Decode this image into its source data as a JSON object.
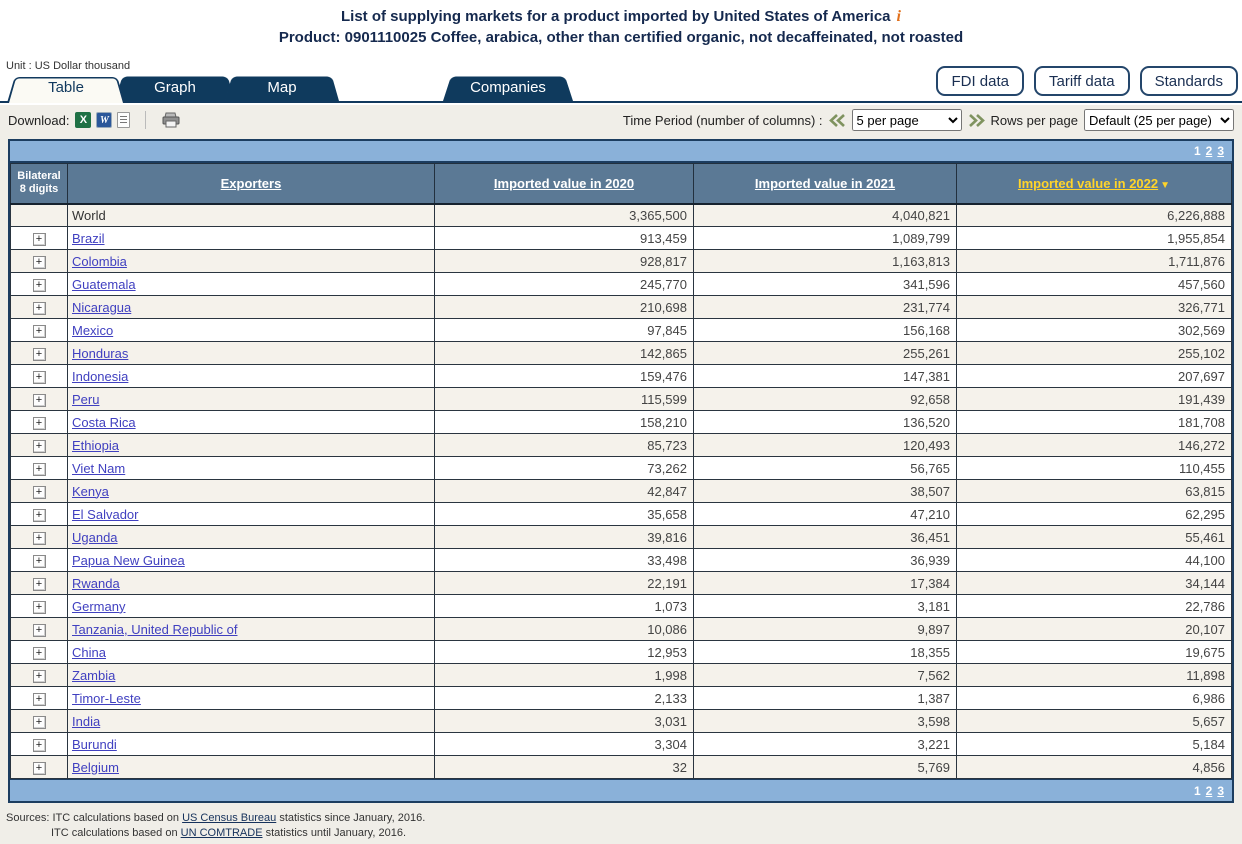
{
  "page": {
    "title_line1": "List of supplying markets for a product imported by United States of America",
    "info_icon": "i",
    "title_line2": "Product: 0901110025 Coffee, arabica, other than certified organic, not decaffeinated, not roasted",
    "unit_label": "Unit : US Dollar thousand"
  },
  "tabs": [
    {
      "label": "Table",
      "active": true
    },
    {
      "label": "Graph",
      "active": false
    },
    {
      "label": "Map",
      "active": false
    },
    {
      "label": "Companies",
      "active": false
    }
  ],
  "top_buttons": [
    {
      "label": "FDI data"
    },
    {
      "label": "Tariff data"
    },
    {
      "label": "Standards"
    }
  ],
  "toolbar": {
    "download_label": "Download:",
    "download_icons": [
      "excel-icon",
      "word-icon",
      "text-file-icon",
      "printer-icon"
    ],
    "time_period_label": "Time Period (number of columns) :",
    "time_period_value": "5 per page",
    "rows_per_page_label": "Rows per page",
    "rows_per_page_value": "Default (25 per page)"
  },
  "pagination": {
    "pages": [
      "1",
      "2",
      "3"
    ],
    "current": "1"
  },
  "table": {
    "col1_header_line1": "Bilateral",
    "col1_header_line2": "8 digits",
    "exporters_header": "Exporters",
    "value_headers": [
      "Imported value in 2020",
      "Imported value in 2021",
      "Imported value in 2022"
    ],
    "sorted_header": "Imported value in 2022",
    "sort_arrow": "▼",
    "rows": [
      {
        "name": "World",
        "expandable": false,
        "link": false,
        "v2020": "3,365,500",
        "v2021": "4,040,821",
        "v2022": "6,226,888"
      },
      {
        "name": "Brazil",
        "expandable": true,
        "link": true,
        "v2020": "913,459",
        "v2021": "1,089,799",
        "v2022": "1,955,854"
      },
      {
        "name": "Colombia",
        "expandable": true,
        "link": true,
        "v2020": "928,817",
        "v2021": "1,163,813",
        "v2022": "1,711,876"
      },
      {
        "name": "Guatemala",
        "expandable": true,
        "link": true,
        "v2020": "245,770",
        "v2021": "341,596",
        "v2022": "457,560"
      },
      {
        "name": "Nicaragua",
        "expandable": true,
        "link": true,
        "v2020": "210,698",
        "v2021": "231,774",
        "v2022": "326,771"
      },
      {
        "name": "Mexico",
        "expandable": true,
        "link": true,
        "v2020": "97,845",
        "v2021": "156,168",
        "v2022": "302,569"
      },
      {
        "name": "Honduras",
        "expandable": true,
        "link": true,
        "v2020": "142,865",
        "v2021": "255,261",
        "v2022": "255,102"
      },
      {
        "name": "Indonesia",
        "expandable": true,
        "link": true,
        "v2020": "159,476",
        "v2021": "147,381",
        "v2022": "207,697"
      },
      {
        "name": "Peru",
        "expandable": true,
        "link": true,
        "v2020": "115,599",
        "v2021": "92,658",
        "v2022": "191,439"
      },
      {
        "name": "Costa Rica",
        "expandable": true,
        "link": true,
        "v2020": "158,210",
        "v2021": "136,520",
        "v2022": "181,708"
      },
      {
        "name": "Ethiopia",
        "expandable": true,
        "link": true,
        "v2020": "85,723",
        "v2021": "120,493",
        "v2022": "146,272"
      },
      {
        "name": "Viet Nam",
        "expandable": true,
        "link": true,
        "v2020": "73,262",
        "v2021": "56,765",
        "v2022": "110,455"
      },
      {
        "name": "Kenya",
        "expandable": true,
        "link": true,
        "v2020": "42,847",
        "v2021": "38,507",
        "v2022": "63,815"
      },
      {
        "name": "El Salvador",
        "expandable": true,
        "link": true,
        "v2020": "35,658",
        "v2021": "47,210",
        "v2022": "62,295"
      },
      {
        "name": "Uganda",
        "expandable": true,
        "link": true,
        "v2020": "39,816",
        "v2021": "36,451",
        "v2022": "55,461"
      },
      {
        "name": "Papua New Guinea",
        "expandable": true,
        "link": true,
        "v2020": "33,498",
        "v2021": "36,939",
        "v2022": "44,100"
      },
      {
        "name": "Rwanda",
        "expandable": true,
        "link": true,
        "v2020": "22,191",
        "v2021": "17,384",
        "v2022": "34,144"
      },
      {
        "name": "Germany",
        "expandable": true,
        "link": true,
        "v2020": "1,073",
        "v2021": "3,181",
        "v2022": "22,786"
      },
      {
        "name": "Tanzania, United Republic of",
        "expandable": true,
        "link": true,
        "v2020": "10,086",
        "v2021": "9,897",
        "v2022": "20,107"
      },
      {
        "name": "China",
        "expandable": true,
        "link": true,
        "v2020": "12,953",
        "v2021": "18,355",
        "v2022": "19,675"
      },
      {
        "name": "Zambia",
        "expandable": true,
        "link": true,
        "v2020": "1,998",
        "v2021": "7,562",
        "v2022": "11,898"
      },
      {
        "name": "Timor-Leste",
        "expandable": true,
        "link": true,
        "v2020": "2,133",
        "v2021": "1,387",
        "v2022": "6,986"
      },
      {
        "name": "India",
        "expandable": true,
        "link": true,
        "v2020": "3,031",
        "v2021": "3,598",
        "v2022": "5,657"
      },
      {
        "name": "Burundi",
        "expandable": true,
        "link": true,
        "v2020": "3,304",
        "v2021": "3,221",
        "v2022": "5,184"
      },
      {
        "name": "Belgium",
        "expandable": true,
        "link": true,
        "v2020": "32",
        "v2021": "5,769",
        "v2022": "4,856"
      }
    ]
  },
  "footer": {
    "line1_prefix": "Sources: ITC calculations based on ",
    "line1_link": "US Census Bureau",
    "line1_suffix": " statistics since January, 2016.",
    "line2_prefix": "ITC calculations based on ",
    "line2_link": "UN COMTRADE",
    "line2_suffix": " statistics until January, 2016."
  },
  "colors": {
    "navy": "#11395e",
    "header_row": "#5b7995",
    "pagination_bar": "#8ab1d9",
    "sorted_column_yellow": "#ffd42a",
    "row_alt_beige": "#f5f2eb",
    "country_link": "#4040c0",
    "info_icon_orange": "#e2711d"
  }
}
